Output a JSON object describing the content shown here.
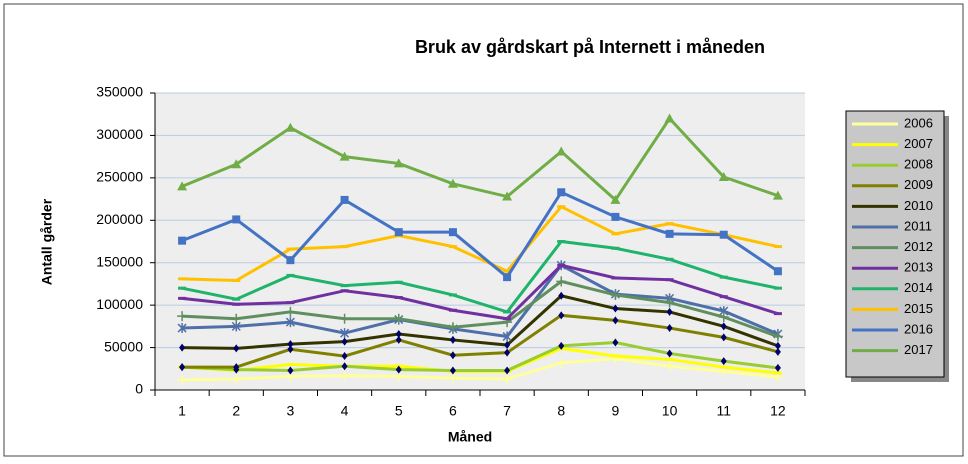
{
  "chart_data": {
    "type": "line",
    "title": "Bruk av gårdskart på Internett i måneden",
    "x_label": "Måned",
    "y_label": "Antall gårder",
    "categories": [
      "1",
      "2",
      "3",
      "4",
      "5",
      "6",
      "7",
      "8",
      "9",
      "10",
      "11",
      "12"
    ],
    "ylim": [
      0,
      350000
    ],
    "yticks": [
      0,
      50000,
      100000,
      150000,
      200000,
      250000,
      300000,
      350000
    ],
    "grid": true,
    "legend": "right",
    "series": [
      {
        "name": "2006",
        "color": "#ffff99",
        "marker": "plus",
        "values": [
          12000,
          13000,
          16000,
          17000,
          16000,
          14000,
          13000,
          32000,
          37000,
          28000,
          22000,
          15000
        ]
      },
      {
        "name": "2007",
        "color": "#ffff00",
        "marker": "dash",
        "values": [
          27000,
          23000,
          30000,
          28000,
          28000,
          22000,
          22000,
          49000,
          40000,
          36000,
          27000,
          20000
        ]
      },
      {
        "name": "2008",
        "color": "#99cc33",
        "marker": "diamond",
        "values": [
          27000,
          24000,
          23000,
          28000,
          24000,
          23000,
          23000,
          52000,
          56000,
          43000,
          34000,
          26000
        ]
      },
      {
        "name": "2009",
        "color": "#808000",
        "marker": "diamond",
        "values": [
          27000,
          27000,
          48000,
          40000,
          59000,
          41000,
          44000,
          88000,
          82000,
          73000,
          62000,
          45000
        ]
      },
      {
        "name": "2010",
        "color": "#333300",
        "marker": "diamond",
        "values": [
          50000,
          49000,
          54000,
          57000,
          66000,
          59000,
          53000,
          111000,
          96000,
          92000,
          75000,
          52000
        ]
      },
      {
        "name": "2011",
        "color": "#4f6fa8",
        "marker": "x",
        "values": [
          73000,
          75000,
          80000,
          67000,
          83000,
          72000,
          63000,
          147000,
          113000,
          108000,
          93000,
          66000
        ]
      },
      {
        "name": "2012",
        "color": "#5f8f5f",
        "marker": "plus",
        "values": [
          87000,
          84000,
          92000,
          84000,
          84000,
          74000,
          80000,
          128000,
          112000,
          103000,
          86000,
          63000
        ]
      },
      {
        "name": "2013",
        "color": "#7030a0",
        "marker": "dash",
        "values": [
          108000,
          101000,
          103000,
          117000,
          109000,
          94000,
          84000,
          147000,
          132000,
          130000,
          110000,
          90000
        ]
      },
      {
        "name": "2014",
        "color": "#1fb36b",
        "marker": "dash",
        "values": [
          120000,
          107000,
          135000,
          123000,
          127000,
          112000,
          92000,
          175000,
          167000,
          154000,
          133000,
          120000
        ]
      },
      {
        "name": "2015",
        "color": "#ffc000",
        "marker": "dash",
        "values": [
          131000,
          129000,
          166000,
          169000,
          182000,
          169000,
          140000,
          216000,
          184000,
          196000,
          183000,
          169000
        ]
      },
      {
        "name": "2016",
        "color": "#4472c4",
        "marker": "square",
        "values": [
          176000,
          201000,
          153000,
          224000,
          186000,
          186000,
          133000,
          233000,
          204000,
          184000,
          183000,
          140000
        ]
      },
      {
        "name": "2017",
        "color": "#70ad47",
        "marker": "triangle",
        "values": [
          240000,
          266000,
          309000,
          275000,
          267000,
          243000,
          228000,
          281000,
          224000,
          320000,
          251000,
          229000
        ]
      }
    ]
  }
}
